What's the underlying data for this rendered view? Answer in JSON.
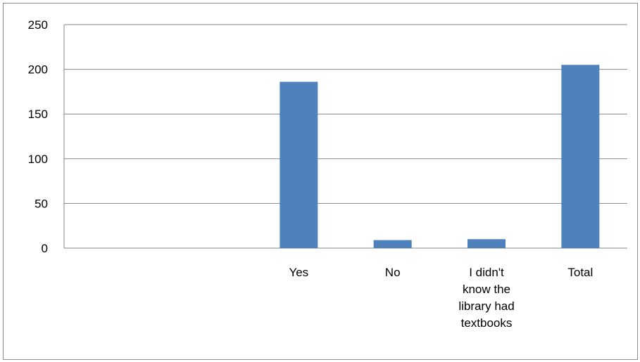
{
  "chart_data": {
    "type": "bar",
    "title": "",
    "xlabel": "",
    "ylabel": "",
    "categories": [
      "",
      "",
      "Yes",
      "No",
      "I didn't know the library had textbooks",
      "Total"
    ],
    "category_label_lines": [
      [],
      [],
      [
        "Yes"
      ],
      [
        "No"
      ],
      [
        "I didn't",
        "know the",
        "library had",
        "textbooks"
      ],
      [
        "Total"
      ]
    ],
    "values": [
      null,
      null,
      186,
      9,
      10,
      205
    ],
    "ylim": [
      0,
      250
    ],
    "yticks": [
      0,
      50,
      100,
      150,
      200,
      250
    ],
    "grid": true,
    "legend": "none",
    "bar_color": "#4f81bd",
    "grid_color": "#868686"
  }
}
